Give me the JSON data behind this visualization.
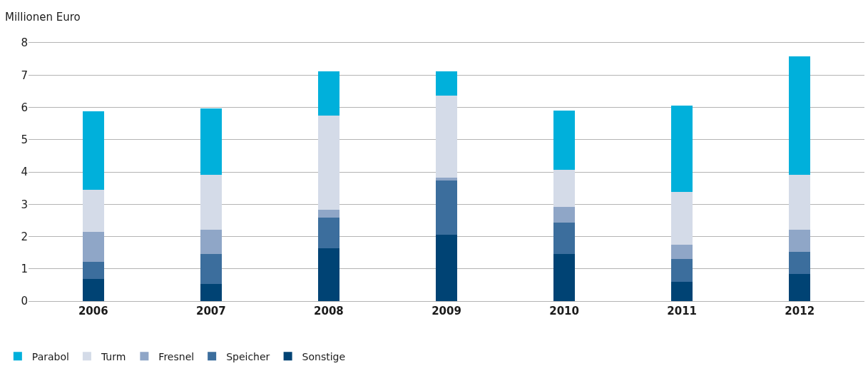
{
  "chart_data": {
    "type": "bar",
    "stacked": true,
    "ylabel": "Millionen Euro",
    "categories": [
      "2006",
      "2007",
      "2008",
      "2009",
      "2010",
      "2011",
      "2012"
    ],
    "series": [
      {
        "name": "Sonstige",
        "color": "#004374",
        "values": [
          0.68,
          0.53,
          1.63,
          2.05,
          1.45,
          0.6,
          0.83
        ]
      },
      {
        "name": "Speicher",
        "color": "#3c6e9d",
        "values": [
          0.54,
          0.92,
          0.96,
          1.69,
          0.99,
          0.7,
          0.69
        ]
      },
      {
        "name": "Fresnel",
        "color": "#8fa6c7",
        "values": [
          0.92,
          0.77,
          0.23,
          0.09,
          0.47,
          0.45,
          0.7
        ]
      },
      {
        "name": "Turm",
        "color": "#d4dbe8",
        "values": [
          1.3,
          1.69,
          2.93,
          2.54,
          1.15,
          1.63,
          1.69
        ]
      },
      {
        "name": "Parabol",
        "color": "#00b0db",
        "values": [
          2.44,
          2.05,
          1.37,
          0.75,
          1.84,
          2.67,
          3.68
        ]
      }
    ],
    "ylim": [
      0,
      8
    ],
    "yticks": [
      0,
      1,
      2,
      3,
      4,
      5,
      6,
      7,
      8
    ],
    "grid": "y",
    "legend": "bottom left"
  }
}
